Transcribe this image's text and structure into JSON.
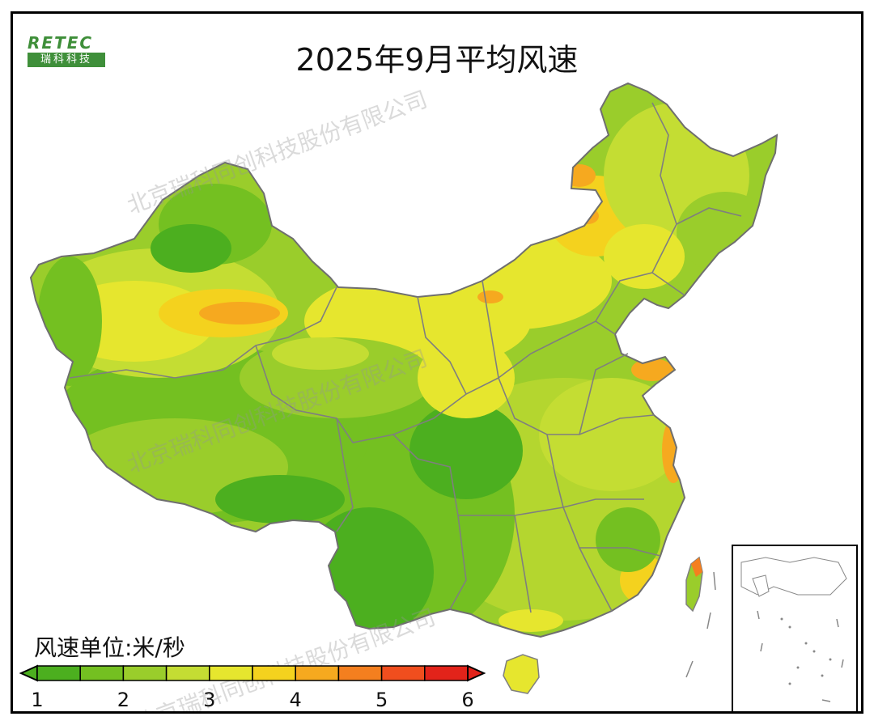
{
  "title": "2025年9月平均风速",
  "logo": {
    "top_text": "RETEC",
    "bottom_text": "瑞科科技"
  },
  "legend": {
    "title": "风速单位:米/秒",
    "ticks": [
      "1",
      "2",
      "3",
      "4",
      "5",
      "6"
    ],
    "bins": [
      {
        "from": 1.0,
        "to": 1.5,
        "color": "#4caf1f"
      },
      {
        "from": 1.5,
        "to": 2.0,
        "color": "#74c021"
      },
      {
        "from": 2.0,
        "to": 2.5,
        "color": "#9acd2b"
      },
      {
        "from": 2.5,
        "to": 3.0,
        "color": "#c4dd33"
      },
      {
        "from": 3.0,
        "to": 3.5,
        "color": "#e6e62e"
      },
      {
        "from": 3.5,
        "to": 4.0,
        "color": "#f4d21e"
      },
      {
        "from": 4.0,
        "to": 4.5,
        "color": "#f6a91f"
      },
      {
        "from": 4.5,
        "to": 5.0,
        "color": "#f47f1f"
      },
      {
        "from": 5.0,
        "to": 5.5,
        "color": "#f04e1e"
      },
      {
        "from": 5.5,
        "to": 6.0,
        "color": "#e2231a"
      }
    ]
  },
  "watermark": "北京瑞科同创科技股份有限公司",
  "colors": {
    "border": "#7f7f7f",
    "sea": "#ffffff"
  }
}
